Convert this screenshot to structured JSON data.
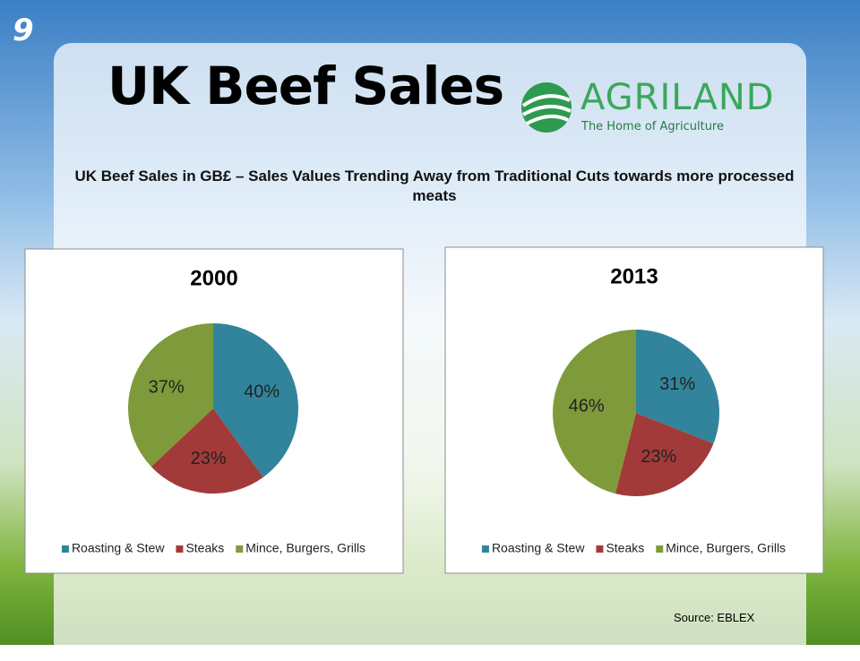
{
  "slide_number": "9",
  "title": "UK Beef Sales",
  "logo": {
    "name": "AGRILAND",
    "tagline": "The Home of Agriculture"
  },
  "subtitle": "UK Beef Sales in GB£ – Sales Values Trending Away from Traditional Cuts towards more processed meats",
  "source": "Source:  EBLEX",
  "chart_data": [
    {
      "type": "pie",
      "title": "2000",
      "categories": [
        "Roasting & Stew",
        "Steaks",
        "Mince, Burgers, Grills"
      ],
      "values": [
        40,
        23,
        37
      ],
      "value_labels": [
        "40%",
        "23%",
        "37%"
      ],
      "colors": [
        "#31849b",
        "#a33a3a",
        "#7f9a3a"
      ],
      "legend": "bottom"
    },
    {
      "type": "pie",
      "title": "2013",
      "categories": [
        "Roasting & Stew",
        "Steaks",
        "Mince, Burgers, Grills"
      ],
      "values": [
        31,
        23,
        46
      ],
      "value_labels": [
        "31%",
        "23%",
        "46%"
      ],
      "colors": [
        "#31849b",
        "#a33a3a",
        "#7f9a3a"
      ],
      "legend": "bottom"
    }
  ]
}
